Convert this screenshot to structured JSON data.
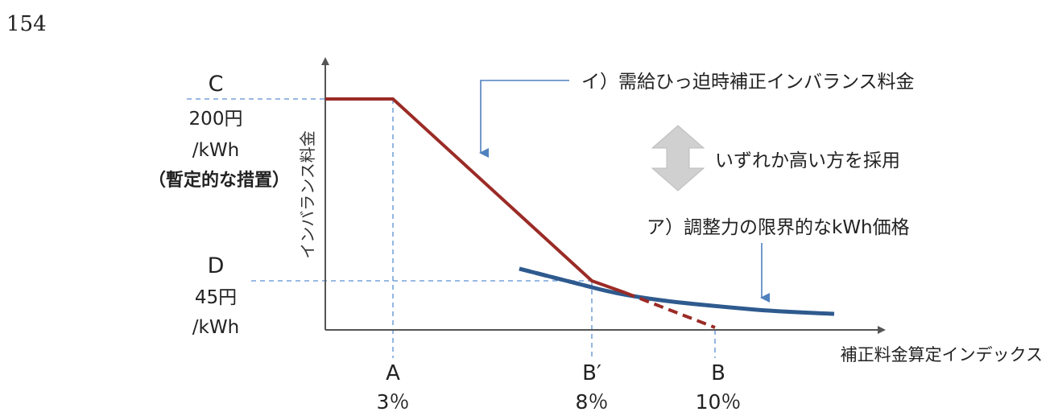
{
  "page_number": "154",
  "y_axis_label": "インバランス料金",
  "x_axis_label": "補正料金算定インデックス",
  "left_labels": {
    "c_letter": "C",
    "c_value": "200円",
    "c_unit": "/kWh",
    "c_note": "（暫定的な措置）",
    "d_letter": "D",
    "d_value": "45円",
    "d_unit": "/kWh"
  },
  "x_ticks": [
    {
      "letter": "A",
      "value": "3％"
    },
    {
      "letter": "B′",
      "value": "8％"
    },
    {
      "letter": "B",
      "value": "10％"
    }
  ],
  "annotations": {
    "curve_i": "イ）需給ひっ迫時補正インバランス料金",
    "choose": "いずれか高い方を採用",
    "curve_a": "ア）調整力の限界的なkWh価格"
  },
  "colors": {
    "curve_i": "#9b2b26",
    "curve_a": "#2e5a8e",
    "guide": "#5b8fd0",
    "arrow": "#4f81bd",
    "double_arrow": "#d0d0d0"
  }
}
